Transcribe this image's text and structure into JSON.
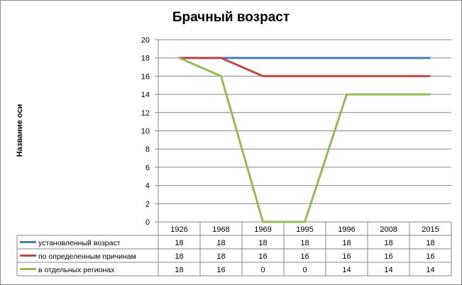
{
  "chart_data": {
    "type": "line",
    "title": "Брачный возраст",
    "xlabel": "",
    "ylabel": "Название оси",
    "categories": [
      "1926",
      "1968",
      "1969",
      "1995",
      "1996",
      "2008",
      "2015"
    ],
    "ylim": [
      0,
      20
    ],
    "yticks": [
      "0",
      "2",
      "4",
      "6",
      "8",
      "10",
      "12",
      "14",
      "16",
      "18",
      "20"
    ],
    "grid": true,
    "legend": "data-table",
    "series": [
      {
        "name": "установленный возраст",
        "color": "#4a7ebb",
        "values": [
          18,
          18,
          18,
          18,
          18,
          18,
          18
        ]
      },
      {
        "name": "по определенным причинам",
        "color": "#be4b48",
        "values": [
          18,
          18,
          16,
          16,
          16,
          16,
          16
        ]
      },
      {
        "name": "в отдельных регионах",
        "color": "#98b954",
        "values": [
          18,
          16,
          0,
          0,
          14,
          14,
          14
        ]
      }
    ]
  }
}
